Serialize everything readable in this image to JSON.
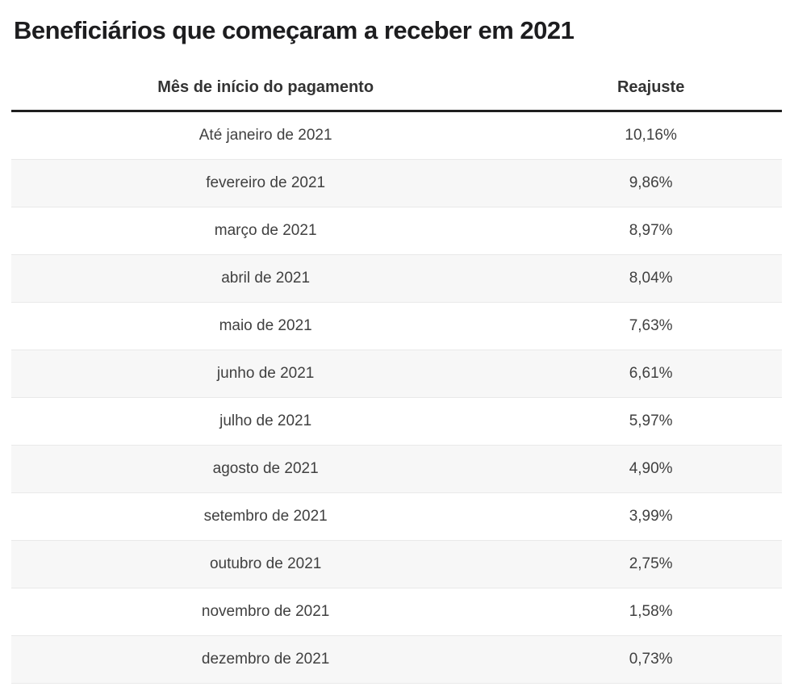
{
  "page": {
    "title": "Beneficiários que começaram a receber em 2021"
  },
  "table": {
    "headers": {
      "month": "Mês de início do pagamento",
      "adjustment": "Reajuste"
    },
    "rows": [
      {
        "month": "Até janeiro de 2021",
        "value": "10,16%"
      },
      {
        "month": "fevereiro de 2021",
        "value": "9,86%"
      },
      {
        "month": "março de 2021",
        "value": "8,97%"
      },
      {
        "month": "abril de 2021",
        "value": "8,04%"
      },
      {
        "month": "maio de 2021",
        "value": "7,63%"
      },
      {
        "month": "junho de 2021",
        "value": "6,61%"
      },
      {
        "month": "julho de 2021",
        "value": "5,97%"
      },
      {
        "month": "agosto de 2021",
        "value": "4,90%"
      },
      {
        "month": "setembro de 2021",
        "value": "3,99%"
      },
      {
        "month": "outubro de 2021",
        "value": "2,75%"
      },
      {
        "month": "novembro de 2021",
        "value": "1,58%"
      },
      {
        "month": "dezembro de 2021",
        "value": "0,73%"
      }
    ]
  },
  "colors": {
    "title_text": "#1d1d1f",
    "header_text": "#333333",
    "row_text": "#404040",
    "stripe_background": "#f7f7f7",
    "row_border": "#e9e9e9",
    "header_rule": "#1f1f1f",
    "page_background": "#ffffff"
  },
  "chart_data": {
    "type": "table",
    "title": "Beneficiários que começaram a receber em 2021",
    "columns": [
      "Mês de início do pagamento",
      "Reajuste"
    ],
    "rows": [
      [
        "Até janeiro de 2021",
        "10,16%"
      ],
      [
        "fevereiro de 2021",
        "9,86%"
      ],
      [
        "março de 2021",
        "8,97%"
      ],
      [
        "abril de 2021",
        "8,04%"
      ],
      [
        "maio de 2021",
        "7,63%"
      ],
      [
        "junho de 2021",
        "6,61%"
      ],
      [
        "julho de 2021",
        "5,97%"
      ],
      [
        "agosto de 2021",
        "4,90%"
      ],
      [
        "setembro de 2021",
        "3,99%"
      ],
      [
        "outubro de 2021",
        "2,75%"
      ],
      [
        "novembro de 2021",
        "1,58%"
      ],
      [
        "dezembro de 2021",
        "0,73%"
      ]
    ],
    "reajuste_percent_values": [
      10.16,
      9.86,
      8.97,
      8.04,
      7.63,
      6.61,
      5.97,
      4.9,
      3.99,
      2.75,
      1.58,
      0.73
    ],
    "layout": {
      "striped_rows": "even",
      "value_alignment": "center",
      "month_alignment": "center"
    }
  }
}
